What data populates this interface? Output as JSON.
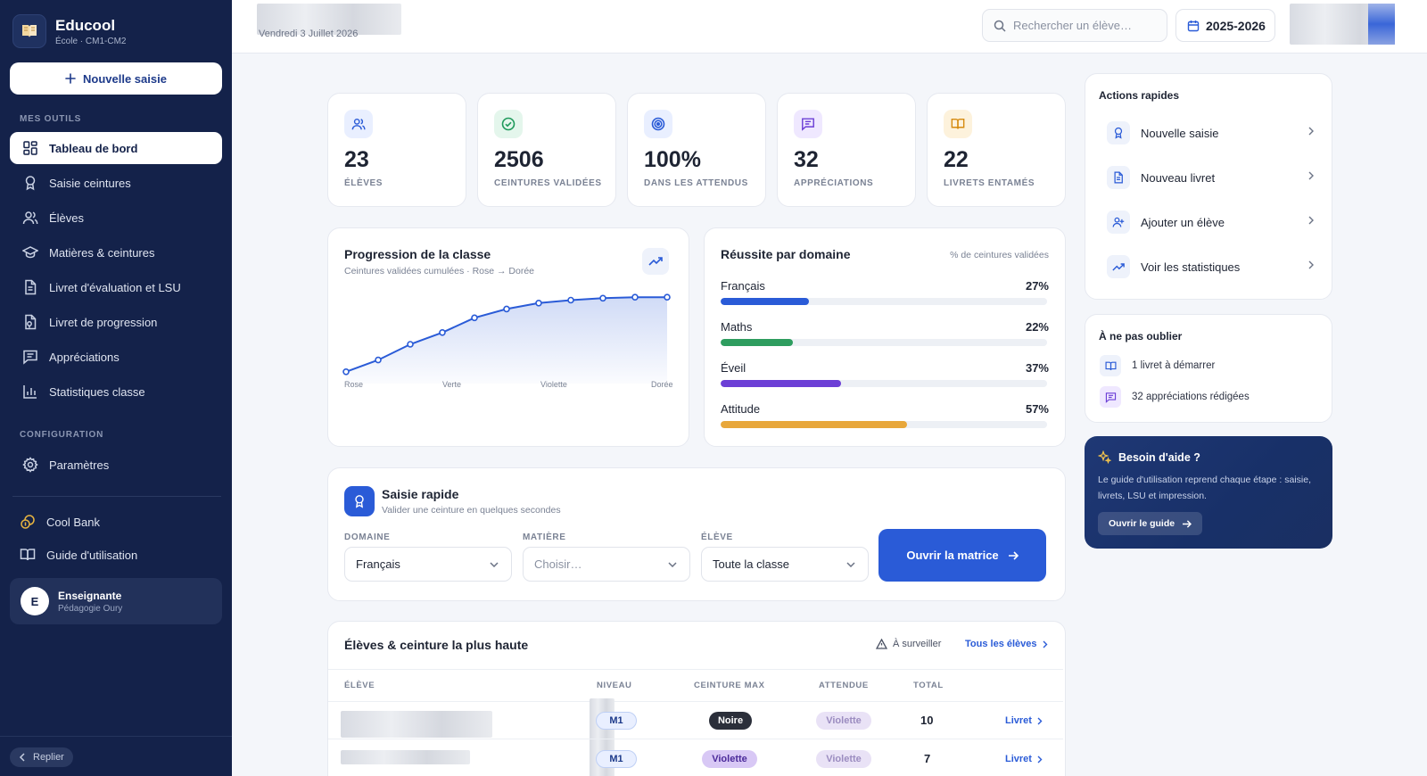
{
  "brand": {
    "name": "Educool",
    "subtitle": "École · CM1-CM2"
  },
  "sidebar": {
    "new_button": "Nouvelle saisie",
    "tools_label": "MES OUTILS",
    "items": [
      {
        "label": "Tableau de bord",
        "icon": "dashboard-icon",
        "active": true
      },
      {
        "label": "Saisie ceintures",
        "icon": "award-icon"
      },
      {
        "label": "Élèves",
        "icon": "users-icon"
      },
      {
        "label": "Matières & ceintures",
        "icon": "graduation-cap-icon"
      },
      {
        "label": "Livret d'évaluation et LSU",
        "icon": "document-icon"
      },
      {
        "label": "Livret de progression",
        "icon": "progress-file-icon"
      },
      {
        "label": "Appréciations",
        "icon": "message-square-icon"
      },
      {
        "label": "Statistiques classe",
        "icon": "bar-chart-icon"
      }
    ],
    "config_label": "CONFIGURATION",
    "settings": "Paramètres",
    "cool_bank": "Cool Bank",
    "guide": "Guide d'utilisation",
    "user": {
      "initial": "E",
      "name": "Enseignante",
      "subtitle": "Pédagogie Oury"
    },
    "collapse": "Replier"
  },
  "topbar": {
    "date": "Vendredi 3 Juillet 2026",
    "search_placeholder": "Rechercher un élève…",
    "year": "2025-2026"
  },
  "stats": [
    {
      "value": "23",
      "label": "ÉLÈVES",
      "icon": "users-icon",
      "color": "#2a5bd7",
      "bg": "#e9efff"
    },
    {
      "value": "2506",
      "label": "CEINTURES VALIDÉES",
      "icon": "check-circle-icon",
      "color": "#1f9a5b",
      "bg": "#e4f6ec"
    },
    {
      "value": "100%",
      "label": "DANS LES ATTENDUS",
      "icon": "target-icon",
      "color": "#2a5bd7",
      "bg": "#e9efff"
    },
    {
      "value": "32",
      "label": "APPRÉCIATIONS",
      "icon": "message-square-icon",
      "color": "#6c3fd6",
      "bg": "#efe8ff"
    },
    {
      "value": "22",
      "label": "LIVRETS ENTAMÉS",
      "icon": "book-open-icon",
      "color": "#d68b10",
      "bg": "#fdf2dc"
    }
  ],
  "progression": {
    "title": "Progression de la classe",
    "subtitle": "Ceintures validées cumulées · Rose → Dorée",
    "x_labels": [
      "Rose",
      "Verte",
      "Violette",
      "Dorée"
    ]
  },
  "chart_data": {
    "type": "area",
    "title": "Progression de la classe",
    "subtitle": "Ceintures validées cumulées · Rose → Dorée",
    "x": [
      1,
      2,
      3,
      4,
      5,
      6,
      7,
      8,
      9,
      10,
      11
    ],
    "tick_labels": [
      "Rose",
      "Verte",
      "Violette",
      "Dorée"
    ],
    "values": [
      12,
      24,
      40,
      52,
      67,
      76,
      82,
      85,
      87,
      88,
      88
    ],
    "ylim": [
      0,
      100
    ],
    "grid": false
  },
  "domains": {
    "title": "Réussite par domaine",
    "caption": "% de ceintures validées",
    "items": [
      {
        "name": "Français",
        "pct": "27%",
        "value": 27,
        "color": "#2a5bd7"
      },
      {
        "name": "Maths",
        "pct": "22%",
        "value": 22,
        "color": "#2e9d5f"
      },
      {
        "name": "Éveil",
        "pct": "37%",
        "value": 37,
        "color": "#6c3fd6"
      },
      {
        "name": "Attitude",
        "pct": "57%",
        "value": 57,
        "color": "#e8a73a"
      }
    ]
  },
  "quick": {
    "title": "Saisie rapide",
    "subtitle": "Valider une ceinture en quelques secondes",
    "domain_label": "DOMAINE",
    "domain_value": "Français",
    "subject_label": "MATIÈRE",
    "subject_placeholder": "Choisir…",
    "student_label": "ÉLÈVE",
    "student_value": "Toute la classe",
    "button": "Ouvrir la matrice"
  },
  "students": {
    "title": "Élèves & ceinture la plus haute",
    "watch": "À surveiller",
    "all": "Tous les élèves",
    "headers": [
      "ÉLÈVE",
      "NIVEAU",
      "CEINTURE MAX",
      "ATTENDUE",
      "TOTAL"
    ],
    "rows": [
      {
        "level": "M1",
        "max": "Noire",
        "max_bg": "#2b2f3a",
        "max_fg": "#ffffff",
        "expected": "Violette",
        "total": "10",
        "link": "Livret"
      },
      {
        "level": "M1",
        "max": "Violette",
        "max_bg": "#d8c8f5",
        "max_fg": "#4b2a9a",
        "expected": "Violette",
        "total": "7",
        "link": "Livret"
      }
    ]
  },
  "quick_actions": {
    "title": "Actions rapides",
    "items": [
      {
        "label": "Nouvelle saisie",
        "icon": "award-icon"
      },
      {
        "label": "Nouveau livret",
        "icon": "document-icon"
      },
      {
        "label": "Ajouter un élève",
        "icon": "user-plus-icon"
      },
      {
        "label": "Voir les statistiques",
        "icon": "trending-up-icon"
      }
    ]
  },
  "reminders": {
    "title": "À ne pas oublier",
    "items": [
      {
        "text": "1 livret à démarrer",
        "icon": "book-open-icon"
      },
      {
        "text": "32 appréciations rédigées",
        "icon": "message-square-icon"
      }
    ]
  },
  "help": {
    "title": "Besoin d'aide ?",
    "text": "Le guide d'utilisation reprend chaque étape : saisie, livrets, LSU et impression.",
    "button": "Ouvrir le guide"
  }
}
